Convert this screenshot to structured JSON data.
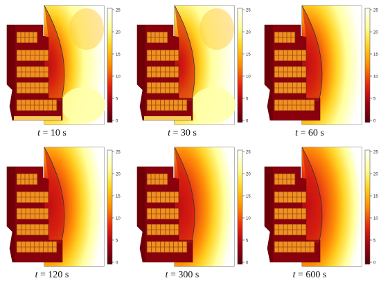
{
  "colorbar": {
    "ticks": [
      "25",
      "20",
      "15",
      "10",
      "5",
      "0"
    ],
    "colors": [
      "#ffffff",
      "#ffff99",
      "#ffd21e",
      "#ff8c00",
      "#e8280c",
      "#9e0010",
      "#55000a"
    ]
  },
  "panels": [
    {
      "variable": "t",
      "label": "= 10 s",
      "stage": 0.18
    },
    {
      "variable": "t",
      "label": "= 30 s",
      "stage": 0.05
    },
    {
      "variable": "t",
      "label": "= 60 s",
      "stage": 0.45
    },
    {
      "variable": "t",
      "label": "= 120 s",
      "stage": 0.62
    },
    {
      "variable": "t",
      "label": "= 300 s",
      "stage": 0.72
    },
    {
      "variable": "t",
      "label": "= 600 s",
      "stage": 0.82
    }
  ]
}
